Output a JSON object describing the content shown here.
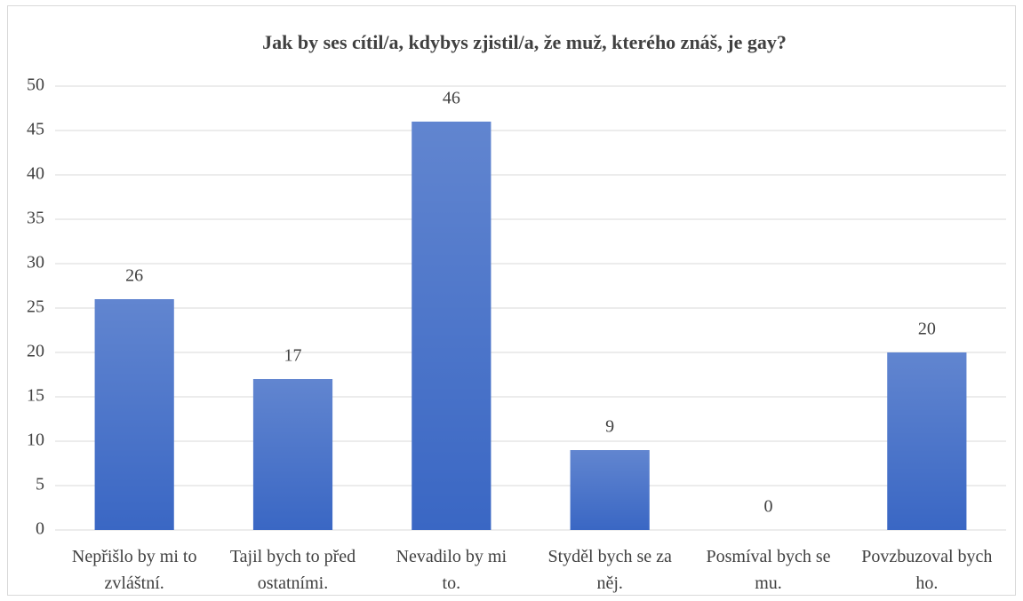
{
  "chart_data": {
    "type": "bar",
    "title": "Jak by ses cítil/a, kdybys zjistil/a, že muž, kterého znáš, je gay?",
    "categories": [
      "Nepřišlo by mi to\nzvláštní.",
      "Tajil bych to před\nostatními.",
      "Nevadilo by mi\nto.",
      "Styděl bych se za\nněj.",
      "Posmíval bych se\nmu.",
      "Povzbuzoval bych\nho."
    ],
    "values": [
      26,
      17,
      46,
      9,
      0,
      20
    ],
    "color": "#3a67c4",
    "ylim": [
      0,
      50
    ],
    "yticks": [
      0,
      5,
      10,
      15,
      20,
      25,
      30,
      35,
      40,
      45,
      50
    ],
    "grid": true
  }
}
